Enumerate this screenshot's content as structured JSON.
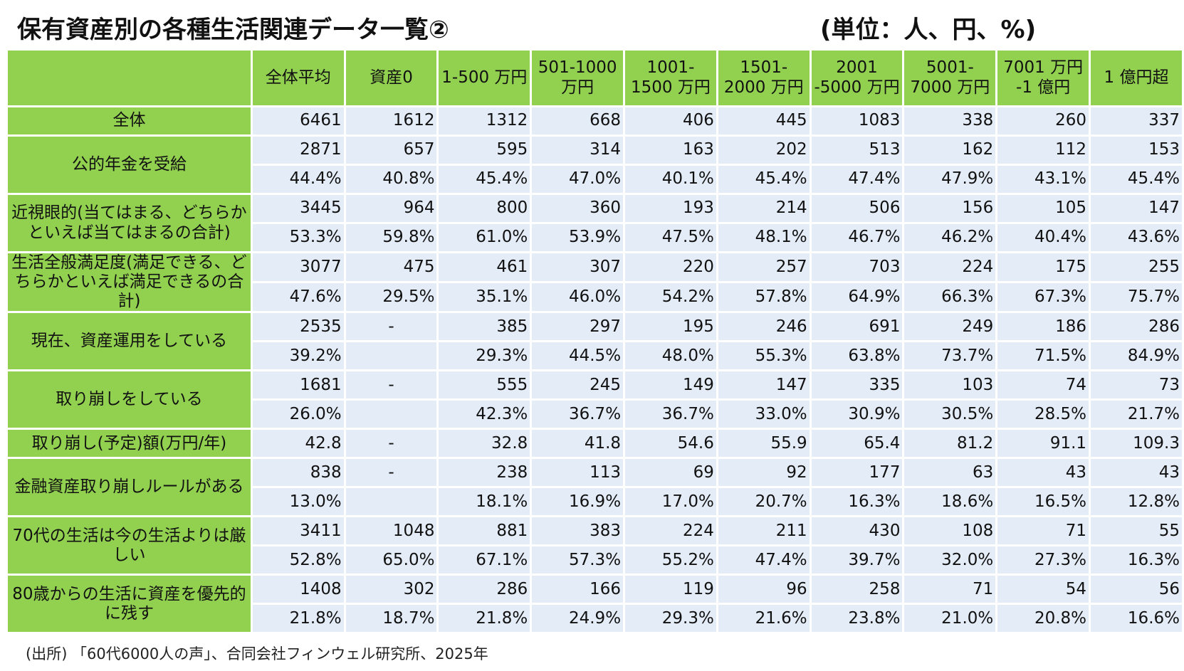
{
  "title": "保有資産別の各種生活関連データ一覧②",
  "unit": "(単位：人、円、%)",
  "columns": [
    "全体平均",
    "資産0",
    "1-500 万円",
    "501-1000 万円",
    "1001-1500 万円",
    "1501-2000 万円",
    "2001 -5000 万円",
    "5001-7000 万円",
    "7001 万円 -1 億円",
    "1 億円超"
  ],
  "rows": [
    {
      "label": "全体",
      "lines": [
        [
          "6461",
          "1612",
          "1312",
          "668",
          "406",
          "445",
          "1083",
          "338",
          "260",
          "337"
        ]
      ]
    },
    {
      "label": "公的年金を受給",
      "lines": [
        [
          "2871",
          "657",
          "595",
          "314",
          "163",
          "202",
          "513",
          "162",
          "112",
          "153"
        ],
        [
          "44.4%",
          "40.8%",
          "45.4%",
          "47.0%",
          "40.1%",
          "45.4%",
          "47.4%",
          "47.9%",
          "43.1%",
          "45.4%"
        ]
      ]
    },
    {
      "label": "近視眼的(当てはまる、どちらかといえば当てはまるの合計)",
      "lines": [
        [
          "3445",
          "964",
          "800",
          "360",
          "193",
          "214",
          "506",
          "156",
          "105",
          "147"
        ],
        [
          "53.3%",
          "59.8%",
          "61.0%",
          "53.9%",
          "47.5%",
          "48.1%",
          "46.7%",
          "46.2%",
          "40.4%",
          "43.6%"
        ]
      ]
    },
    {
      "label": "生活全般満足度(満足できる、どちらかといえば満足できるの合計)",
      "lines": [
        [
          "3077",
          "475",
          "461",
          "307",
          "220",
          "257",
          "703",
          "224",
          "175",
          "255"
        ],
        [
          "47.6%",
          "29.5%",
          "35.1%",
          "46.0%",
          "54.2%",
          "57.8%",
          "64.9%",
          "66.3%",
          "67.3%",
          "75.7%"
        ]
      ]
    },
    {
      "label": "現在、資産運用をしている",
      "lines": [
        [
          "2535",
          "-",
          "385",
          "297",
          "195",
          "246",
          "691",
          "249",
          "186",
          "286"
        ],
        [
          "39.2%",
          "",
          "29.3%",
          "44.5%",
          "48.0%",
          "55.3%",
          "63.8%",
          "73.7%",
          "71.5%",
          "84.9%"
        ]
      ]
    },
    {
      "label": "取り崩しをしている",
      "lines": [
        [
          "1681",
          "-",
          "555",
          "245",
          "149",
          "147",
          "335",
          "103",
          "74",
          "73"
        ],
        [
          "26.0%",
          "",
          "42.3%",
          "36.7%",
          "36.7%",
          "33.0%",
          "30.9%",
          "30.5%",
          "28.5%",
          "21.7%"
        ]
      ]
    },
    {
      "label": "取り崩し(予定)額(万円/年)",
      "lines": [
        [
          "42.8",
          "-",
          "32.8",
          "41.8",
          "54.6",
          "55.9",
          "65.4",
          "81.2",
          "91.1",
          "109.3"
        ]
      ]
    },
    {
      "label": "金融資産取り崩しルールがある",
      "lines": [
        [
          "838",
          "-",
          "238",
          "113",
          "69",
          "92",
          "177",
          "63",
          "43",
          "43"
        ],
        [
          "13.0%",
          "",
          "18.1%",
          "16.9%",
          "17.0%",
          "20.7%",
          "16.3%",
          "18.6%",
          "16.5%",
          "12.8%"
        ]
      ]
    },
    {
      "label": "70代の生活は今の生活よりは厳しい",
      "lines": [
        [
          "3411",
          "1048",
          "881",
          "383",
          "224",
          "211",
          "430",
          "108",
          "71",
          "55"
        ],
        [
          "52.8%",
          "65.0%",
          "67.1%",
          "57.3%",
          "55.2%",
          "47.4%",
          "39.7%",
          "32.0%",
          "27.3%",
          "16.3%"
        ]
      ]
    },
    {
      "label": "80歳からの生活に資産を優先的に残す",
      "lines": [
        [
          "1408",
          "302",
          "286",
          "166",
          "119",
          "96",
          "258",
          "71",
          "54",
          "56"
        ],
        [
          "21.8%",
          "18.7%",
          "21.8%",
          "24.9%",
          "29.3%",
          "21.6%",
          "23.8%",
          "21.0%",
          "20.8%",
          "16.6%"
        ]
      ]
    }
  ],
  "source": "(出所) 「60代6000人の声」、合同会社フィンウェル研究所、2025年",
  "colors": {
    "header_green": "#92d050",
    "cell_blue": "#e4ecf7"
  }
}
